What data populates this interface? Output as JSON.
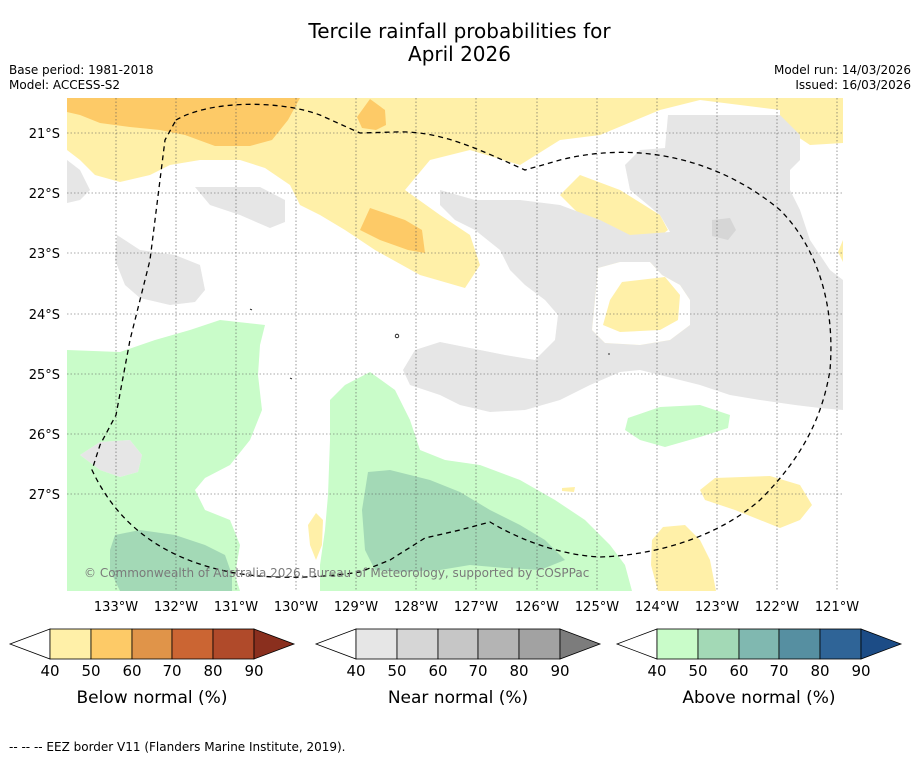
{
  "title_line1": "Tercile rainfall probabilities for",
  "title_line2": "April 2026",
  "base_period": "Base period: 1981-2018",
  "model": "Model: ACCESS-S2",
  "model_run": "Model run: 14/03/2026",
  "issued": "Issued: 16/03/2026",
  "copyright": "© Commonwealth of Australia 2026, Bureau of Meteorology, supported by COSPPac",
  "lat_labels": [
    "21°S",
    "22°S",
    "23°S",
    "24°S",
    "25°S",
    "26°S",
    "27°S"
  ],
  "lon_labels": [
    "133°W",
    "132°W",
    "131°W",
    "130°W",
    "129°W",
    "128°W",
    "127°W",
    "126°W",
    "125°W",
    "124°W",
    "123°W",
    "122°W",
    "121°W"
  ],
  "colorbars": [
    {
      "name": "below",
      "label": "Below normal (%)",
      "ticks": [
        "40",
        "50",
        "60",
        "70",
        "80",
        "90"
      ],
      "colors": [
        "#fff0a8",
        "#fdca67",
        "#e09449",
        "#cb6533",
        "#b04a2a",
        "#8a2f1e"
      ]
    },
    {
      "name": "near",
      "label": "Near normal (%)",
      "ticks": [
        "40",
        "50",
        "60",
        "70",
        "80",
        "90"
      ],
      "colors": [
        "#e6e6e6",
        "#d6d6d6",
        "#c6c6c6",
        "#b4b4b4",
        "#a2a2a2",
        "#7c7c7c"
      ]
    },
    {
      "name": "above",
      "label": "Above normal (%)",
      "ticks": [
        "40",
        "50",
        "60",
        "70",
        "80",
        "90"
      ],
      "colors": [
        "#c9fcc9",
        "#a3d9b6",
        "#80b8b0",
        "#568fa1",
        "#2f6497",
        "#1c4c86"
      ]
    }
  ],
  "footnote": "--  --  -- EEZ border V11 (Flanders Marine Institute, 2019)."
}
